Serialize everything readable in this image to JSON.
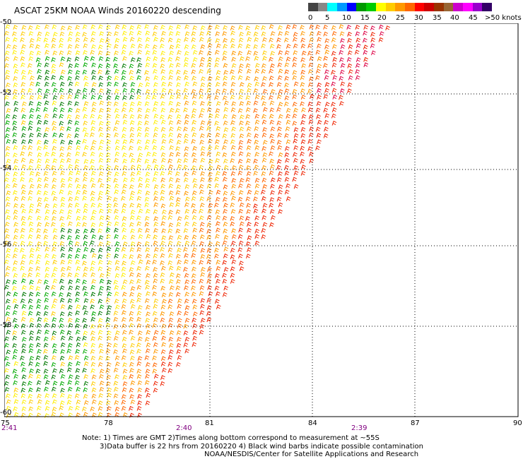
{
  "title": "ASCAT 25KM NOAA Winds 20160220 descending",
  "legend": {
    "labels": [
      "0",
      "5",
      "10",
      "15",
      "20",
      "25",
      "30",
      "35",
      "40",
      "45",
      ">50 knots"
    ],
    "colors": [
      "#444444",
      "#888888",
      "#00ffff",
      "#0099ff",
      "#0000ff",
      "#009900",
      "#00cc00",
      "#ffff00",
      "#ffcc00",
      "#ff9900",
      "#ff6600",
      "#ff0000",
      "#cc0000",
      "#993300",
      "#996633",
      "#cc00cc",
      "#ff00ff",
      "#9900cc",
      "#330066"
    ]
  },
  "axes": {
    "lat_labels": [
      "-50",
      "-52",
      "-54",
      "-56",
      "-58",
      "-60"
    ],
    "lon_labels": [
      "75",
      "78",
      "81",
      "84",
      "87",
      "90"
    ]
  },
  "times": [
    "2:41",
    "2:40",
    "2:39"
  ],
  "notes": {
    "line1": "Note: 1) Times are GMT 2)Times along bottom correspond to measurement at ~55S",
    "line2": "3)Data buffer is 22 hrs from 20160220 4) Black wind barbs indicate possible contamination",
    "line3": "NOAA/NESDIS/Center for Satellite Applications and Research"
  },
  "colors": {
    "yellow": "#ffee00",
    "light_yellow": "#ffcc00",
    "orange": "#ff9900",
    "dark_orange": "#ff6600",
    "red": "#ee2200",
    "green": "#00aa00",
    "dark_green": "#007700",
    "time_label": "#800080"
  }
}
